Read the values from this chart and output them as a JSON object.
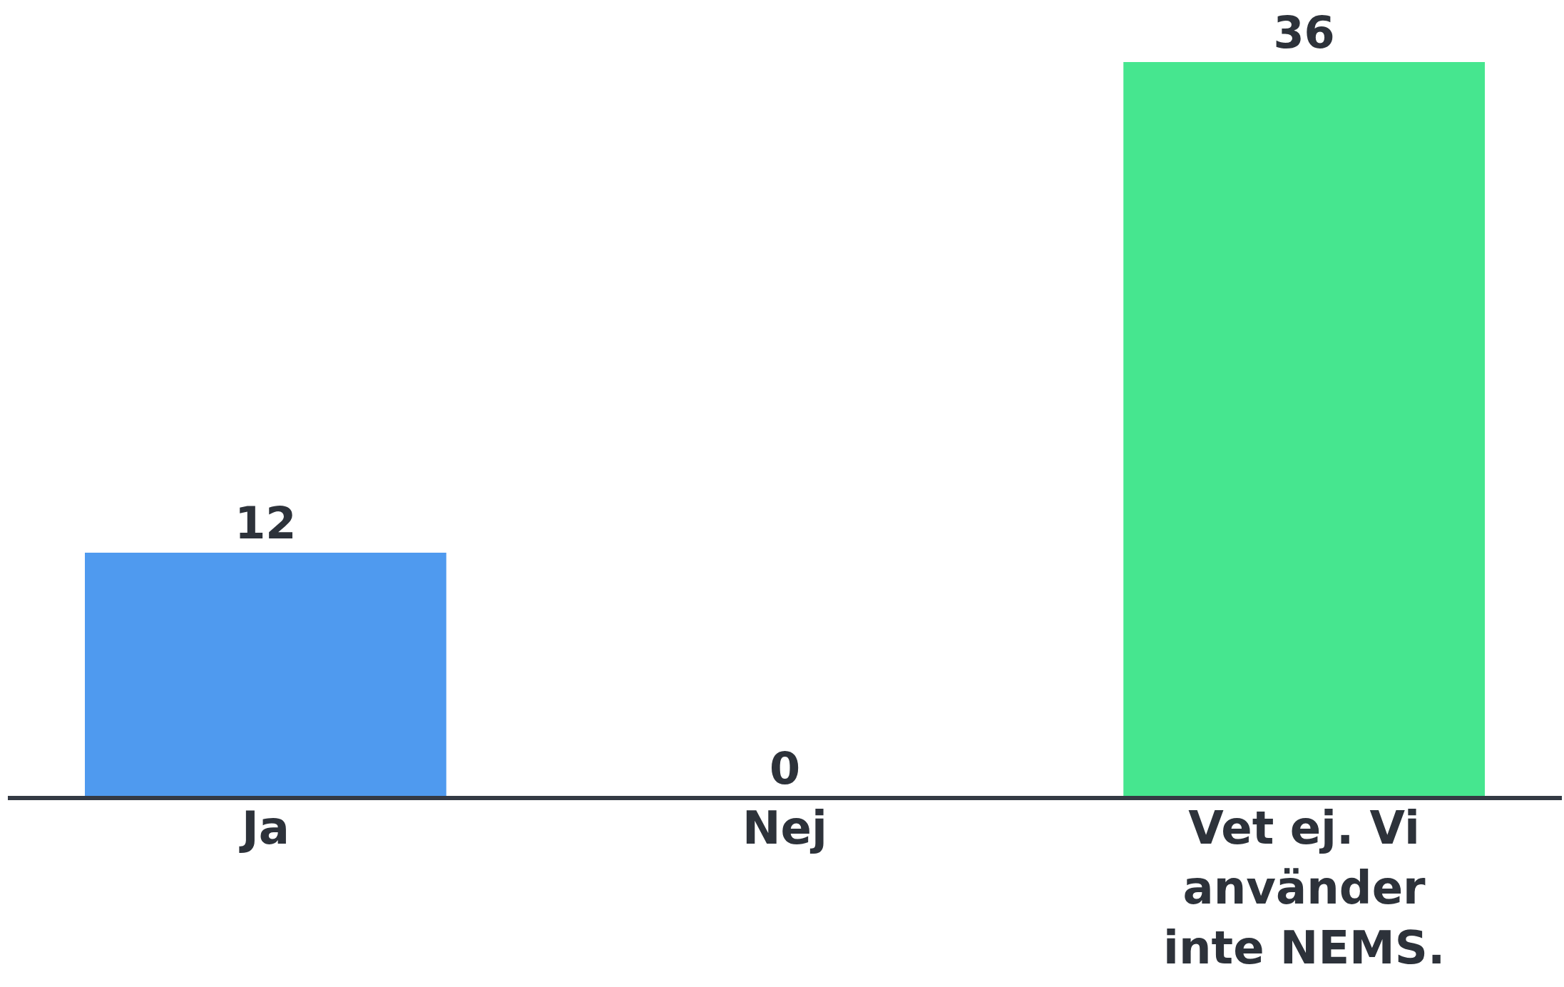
{
  "chart_data": {
    "type": "bar",
    "categories": [
      "Ja",
      "Nej",
      "Vet ej. Vi använder inte NEMS."
    ],
    "values": [
      12,
      0,
      36
    ],
    "colors": [
      "#4f9aef",
      "#4f9aef",
      "#46e68f"
    ],
    "data_labels": true
  }
}
